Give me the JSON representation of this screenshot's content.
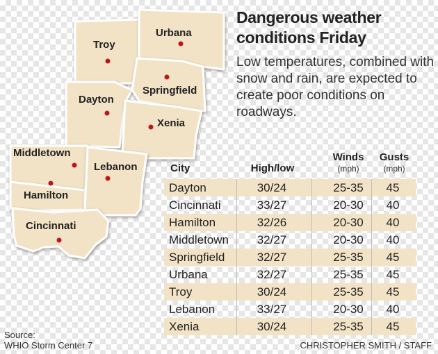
{
  "headline": "Dangerous weather conditions Friday",
  "subhead": "Low temperatures, combined with snow and rain, are expected to create poor conditions on roadways.",
  "map": {
    "counties": [
      "Troy",
      "Urbana",
      "Dayton",
      "Springfield",
      "Xenia",
      "Middletown",
      "Hamilton",
      "Lebanon",
      "Cincinnati"
    ]
  },
  "table": {
    "headers": {
      "city": "City",
      "high_low": "High/low",
      "winds": "Winds",
      "winds_unit": "(mph)",
      "gusts": "Gusts",
      "gusts_unit": "(mph)"
    },
    "rows": [
      {
        "city": "Dayton",
        "high_low": "30/24",
        "winds": "25-35",
        "gusts": "45"
      },
      {
        "city": "Cincinnati",
        "high_low": "33/27",
        "winds": "20-30",
        "gusts": "40"
      },
      {
        "city": "Hamilton",
        "high_low": "32/26",
        "winds": "20-30",
        "gusts": "40"
      },
      {
        "city": "Middletown",
        "high_low": "32/27",
        "winds": "20-30",
        "gusts": "40"
      },
      {
        "city": "Springfield",
        "high_low": "32/27",
        "winds": "25-35",
        "gusts": "45"
      },
      {
        "city": "Urbana",
        "high_low": "32/27",
        "winds": "25-35",
        "gusts": "45"
      },
      {
        "city": "Troy",
        "high_low": "30/24",
        "winds": "25-35",
        "gusts": "45"
      },
      {
        "city": "Lebanon",
        "high_low": "33/27",
        "winds": "20-30",
        "gusts": "40"
      },
      {
        "city": "Xenia",
        "high_low": "30/24",
        "winds": "25-35",
        "gusts": "45"
      }
    ]
  },
  "source_label": "Source:",
  "source_name": "WHIO Storm Center 7",
  "credit": "CHRISTOPHER SMITH / STAFF",
  "colors": {
    "county_fill": "#f3e3c6",
    "city_dot": "#c0141b",
    "row_shade": "#f3e3c6"
  }
}
